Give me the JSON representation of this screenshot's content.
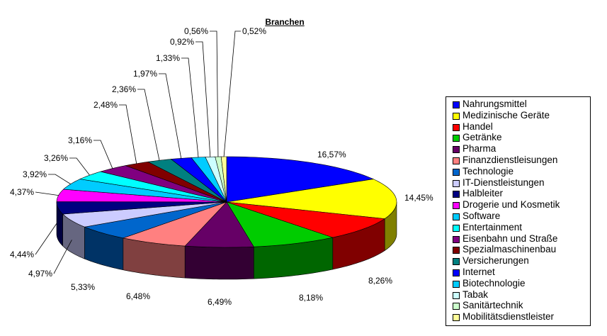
{
  "chart_data": {
    "type": "pie",
    "title": "Branchen",
    "legend_position": "right",
    "slices": [
      {
        "label": "Nahrungsmittel",
        "value": 16.57,
        "value_label": "16,57%",
        "color": "#0000ff"
      },
      {
        "label": "Medizinische Geräte",
        "value": 14.45,
        "value_label": "14,45%",
        "color": "#ffff00"
      },
      {
        "label": "Handel",
        "value": 8.26,
        "value_label": "8,26%",
        "color": "#ff0000"
      },
      {
        "label": "Getränke",
        "value": 8.18,
        "value_label": "8,18%",
        "color": "#00cc00"
      },
      {
        "label": "Pharma",
        "value": 6.49,
        "value_label": "6,49%",
        "color": "#660066"
      },
      {
        "label": "Finanzdienstleisungen",
        "value": 6.48,
        "value_label": "6,48%",
        "color": "#ff8080"
      },
      {
        "label": "Technologie",
        "value": 5.33,
        "value_label": "5,33%",
        "color": "#0066cc"
      },
      {
        "label": "IT-Dienstleistungen",
        "value": 4.97,
        "value_label": "4,97%",
        "color": "#ccccff"
      },
      {
        "label": "Halbleiter",
        "value": 4.44,
        "value_label": "4,44%",
        "color": "#000080"
      },
      {
        "label": "Drogerie und Kosmetik",
        "value": 4.37,
        "value_label": "4,37%",
        "color": "#ff00ff"
      },
      {
        "label": "Software",
        "value": 3.92,
        "value_label": "3,92%",
        "color": "#00ccff"
      },
      {
        "label": "Entertainment",
        "value": 3.26,
        "value_label": "3,26%",
        "color": "#00ffff"
      },
      {
        "label": "Eisenbahn und Straße",
        "value": 3.16,
        "value_label": "3,16%",
        "color": "#800080"
      },
      {
        "label": "Spezialmaschinenbau",
        "value": 2.48,
        "value_label": "2,48%",
        "color": "#800000"
      },
      {
        "label": "Versicherungen",
        "value": 2.36,
        "value_label": "2,36%",
        "color": "#008080"
      },
      {
        "label": "Internet",
        "value": 1.97,
        "value_label": "1,97%",
        "color": "#0000ff"
      },
      {
        "label": "Biotechnologie",
        "value": 1.33,
        "value_label": "1,33%",
        "color": "#00ccff"
      },
      {
        "label": "Tabak",
        "value": 0.92,
        "value_label": "0,92%",
        "color": "#ccffff"
      },
      {
        "label": "Sanitärtechnik",
        "value": 0.56,
        "value_label": "0,56%",
        "color": "#ccffcc"
      },
      {
        "label": "Mobilitätsdienstleister",
        "value": 0.52,
        "value_label": "0,52%",
        "color": "#ffff99"
      }
    ]
  }
}
